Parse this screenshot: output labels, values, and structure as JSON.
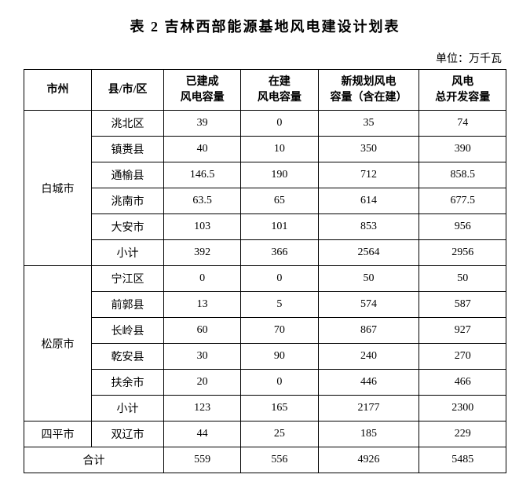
{
  "title": "表 2  吉林西部能源基地风电建设计划表",
  "unit": "单位：万千瓦",
  "columns": {
    "city": "市州",
    "county": "县/市/区",
    "built": "已建成\n风电容量",
    "building": "在建\n风电容量",
    "planned": "新规划风电\n容量（含在建）",
    "total": "风电\n总开发容量"
  },
  "groups": [
    {
      "city": "白城市",
      "rows": [
        {
          "county": "洮北区",
          "built": "39",
          "building": "0",
          "planned": "35",
          "total": "74"
        },
        {
          "county": "镇赉县",
          "built": "40",
          "building": "10",
          "planned": "350",
          "total": "390"
        },
        {
          "county": "通榆县",
          "built": "146.5",
          "building": "190",
          "planned": "712",
          "total": "858.5"
        },
        {
          "county": "洮南市",
          "built": "63.5",
          "building": "65",
          "planned": "614",
          "total": "677.5"
        },
        {
          "county": "大安市",
          "built": "103",
          "building": "101",
          "planned": "853",
          "total": "956"
        },
        {
          "county": "小计",
          "built": "392",
          "building": "366",
          "planned": "2564",
          "total": "2956"
        }
      ]
    },
    {
      "city": "松原市",
      "rows": [
        {
          "county": "宁江区",
          "built": "0",
          "building": "0",
          "planned": "50",
          "total": "50"
        },
        {
          "county": "前郭县",
          "built": "13",
          "building": "5",
          "planned": "574",
          "total": "587"
        },
        {
          "county": "长岭县",
          "built": "60",
          "building": "70",
          "planned": "867",
          "total": "927"
        },
        {
          "county": "乾安县",
          "built": "30",
          "building": "90",
          "planned": "240",
          "total": "270"
        },
        {
          "county": "扶余市",
          "built": "20",
          "building": "0",
          "planned": "446",
          "total": "466"
        },
        {
          "county": "小计",
          "built": "123",
          "building": "165",
          "planned": "2177",
          "total": "2300"
        }
      ]
    },
    {
      "city": "四平市",
      "rows": [
        {
          "county": "双辽市",
          "built": "44",
          "building": "25",
          "planned": "185",
          "total": "229"
        }
      ]
    }
  ],
  "total_row": {
    "label": "合计",
    "built": "559",
    "building": "556",
    "planned": "4926",
    "total": "5485"
  },
  "styles": {
    "background_color": "#ffffff",
    "border_color": "#000000",
    "text_color": "#000000",
    "title_fontsize": 18,
    "cell_fontsize": 14,
    "font_family": "SimSun"
  }
}
